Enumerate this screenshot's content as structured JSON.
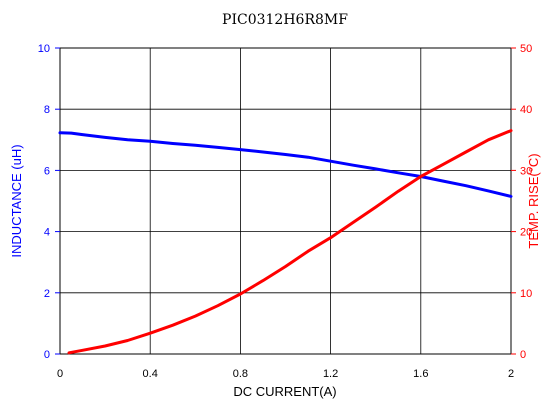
{
  "chart_data": {
    "type": "line",
    "title": "PIC0312H6R8MF",
    "xlabel": "DC CURRENT(A)",
    "ylabel": "INDUCTANCE (uH)",
    "y2label": "TEMP. RISE(°C)",
    "xlim": [
      0,
      2
    ],
    "ylim": [
      0,
      10
    ],
    "y2lim": [
      0,
      50
    ],
    "x_ticks": [
      "0",
      "0.4",
      "0.8",
      "1.2",
      "1.6",
      "2"
    ],
    "x_tick_values": [
      0,
      0.4,
      0.8,
      1.2,
      1.6,
      2
    ],
    "y_ticks": [
      "0",
      "2",
      "4",
      "6",
      "8",
      "10"
    ],
    "y_tick_values": [
      0,
      2,
      4,
      6,
      8,
      10
    ],
    "y2_ticks": [
      "0",
      "10",
      "20",
      "30",
      "40",
      "50"
    ],
    "y2_tick_values": [
      0,
      10,
      20,
      30,
      40,
      50
    ],
    "grid": true,
    "colors": {
      "inductance": "#0000ff",
      "temperature": "#ff0000",
      "grid": "#000000"
    },
    "series": [
      {
        "axis": "left",
        "color": "#0000ff",
        "x": [
          0,
          0.05,
          0.1,
          0.2,
          0.3,
          0.4,
          0.5,
          0.6,
          0.7,
          0.8,
          0.9,
          1.0,
          1.1,
          1.2,
          1.3,
          1.4,
          1.5,
          1.6,
          1.7,
          1.8,
          1.9,
          2.0
        ],
        "values": [
          7.23,
          7.22,
          7.17,
          7.08,
          7.0,
          6.95,
          6.88,
          6.82,
          6.75,
          6.68,
          6.6,
          6.52,
          6.43,
          6.3,
          6.17,
          6.05,
          5.92,
          5.8,
          5.65,
          5.5,
          5.33,
          5.15
        ]
      },
      {
        "axis": "right",
        "color": "#ff0000",
        "x": [
          0.04,
          0.1,
          0.2,
          0.3,
          0.4,
          0.5,
          0.6,
          0.7,
          0.8,
          0.9,
          1.0,
          1.1,
          1.2,
          1.3,
          1.4,
          1.5,
          1.6,
          1.7,
          1.8,
          1.9,
          2.0
        ],
        "values": [
          0.2,
          0.6,
          1.3,
          2.2,
          3.4,
          4.7,
          6.2,
          7.9,
          9.8,
          12.0,
          14.3,
          16.8,
          19.0,
          21.5,
          24.0,
          26.6,
          29.0,
          31.0,
          33.0,
          35.0,
          36.5
        ]
      }
    ]
  }
}
